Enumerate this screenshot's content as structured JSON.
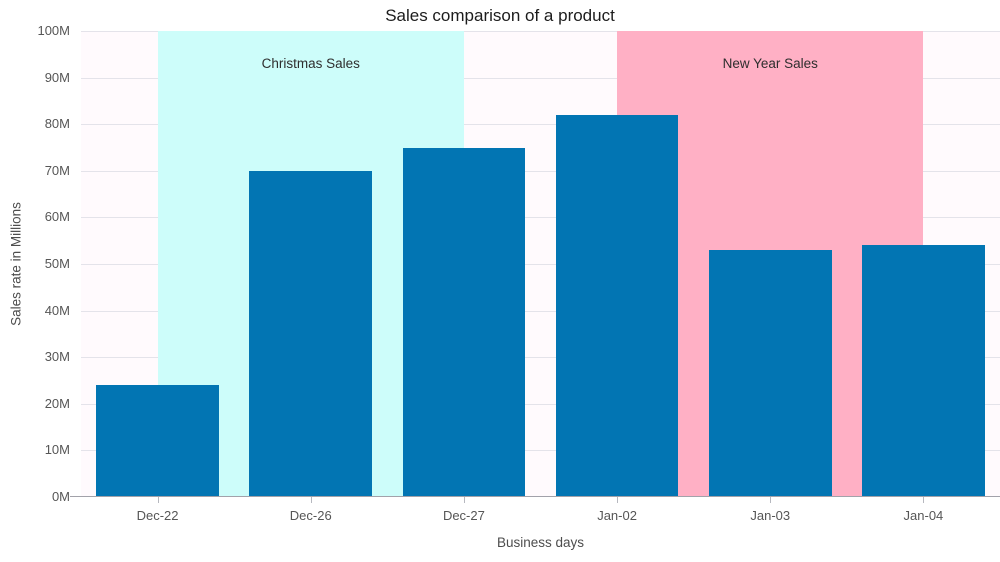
{
  "chart_data": {
    "type": "bar",
    "title": "Sales comparison of a product",
    "xlabel": "Business days",
    "ylabel": "Sales rate in Millions",
    "categories": [
      "Dec-22",
      "Dec-26",
      "Dec-27",
      "Jan-02",
      "Jan-03",
      "Jan-04"
    ],
    "values": [
      24,
      70,
      75,
      82,
      53,
      54
    ],
    "unit": "M",
    "ylim": [
      0,
      100
    ],
    "ytick_step": 10,
    "ytick_labels": [
      "0M",
      "10M",
      "20M",
      "30M",
      "40M",
      "50M",
      "60M",
      "70M",
      "80M",
      "90M",
      "100M"
    ],
    "grid": "horizontal",
    "legend_position": "none",
    "colors": {
      "bar": "#0275b3",
      "plot_background": "#fffafd",
      "gridline": "#e4e3ea",
      "axis_line": "#a2a2aa",
      "tick": "#b6b8bf",
      "title_text": "#1c1c1c",
      "axis_text": "#565656",
      "stripline_text": "#2e2e2e"
    },
    "striplines": [
      {
        "label": "Christmas Sales",
        "start_category": "Dec-22",
        "end_category": "Dec-27",
        "start_index": 0,
        "end_index": 2,
        "color": "#cdfdfa"
      },
      {
        "label": "New Year Sales",
        "start_category": "Jan-02",
        "end_category": "Jan-04",
        "start_index": 3,
        "end_index": 5,
        "color": "#ffb0c5"
      }
    ]
  }
}
